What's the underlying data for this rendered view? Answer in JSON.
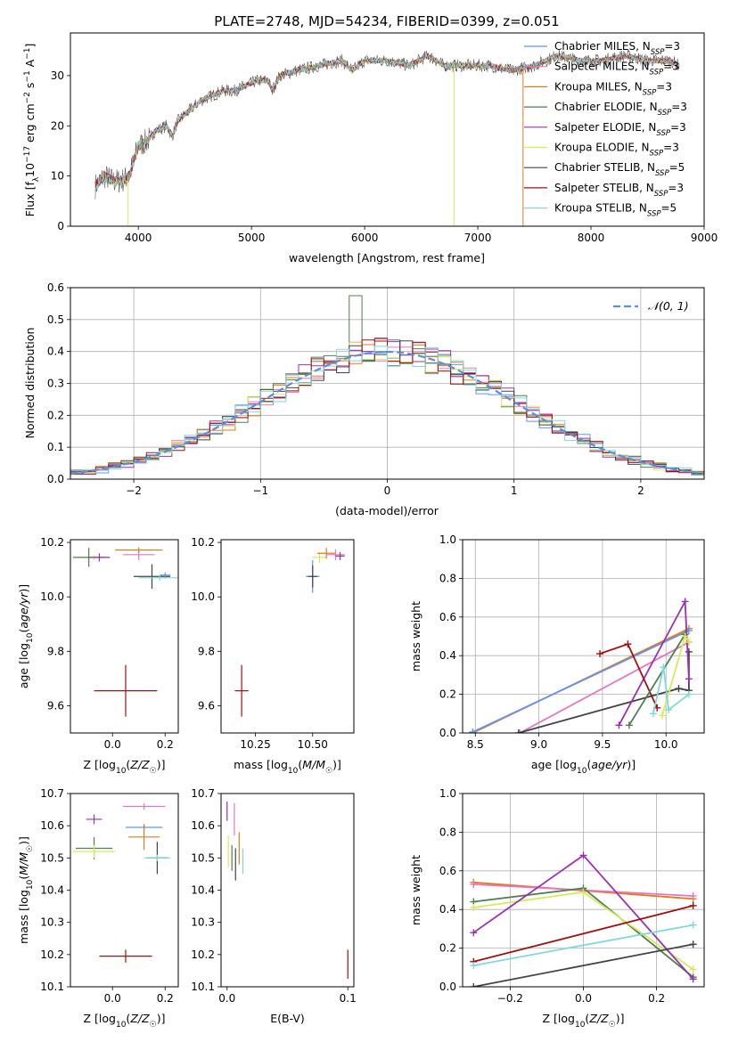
{
  "figure_title": "PLATE=2748, MJD=54234, FIBERID=0399, z=0.051",
  "colors": {
    "chabrier_miles": "#6495ed",
    "salpeter_miles": "#e377c2",
    "kroupa_miles": "#e07b20",
    "chabrier_elodie": "#4f7f4f",
    "salpeter_elodie": "#9b30b0",
    "kroupa_elodie": "#d6ea5a",
    "chabrier_stelib": "#444444",
    "salpeter_stelib": "#a01010",
    "kroupa_stelib": "#80d8dc",
    "normal": "#5b8fd8"
  },
  "chart_data": [
    {
      "type": "line",
      "panel": "spectrum",
      "title": "PLATE=2748, MJD=54234, FIBERID=0399, z=0.051",
      "xlabel": "wavelength [Angstrom, rest frame]",
      "ylabel": "Flux [f_λ10^-17 erg cm^-2 s^-1 A^-1]",
      "xlim": [
        3400,
        9000
      ],
      "ylim": [
        0,
        38.5
      ],
      "xticks": [
        4000,
        5000,
        6000,
        7000,
        8000,
        9000
      ],
      "yticks": [
        0,
        10,
        20,
        30
      ],
      "legend_position": "right",
      "legend": [
        {
          "label": "Chabrier MILES, N",
          "sub": "SSP",
          "suffix": "=3",
          "color_key": "chabrier_miles"
        },
        {
          "label": "Salpeter MILES, N",
          "sub": "SSP",
          "suffix": "=3",
          "color_key": "salpeter_miles"
        },
        {
          "label": "Kroupa MILES, N",
          "sub": "SSP",
          "suffix": "=3",
          "color_key": "kroupa_miles"
        },
        {
          "label": "Chabrier ELODIE, N",
          "sub": "SSP",
          "suffix": "=3",
          "color_key": "chabrier_elodie"
        },
        {
          "label": "Salpeter ELODIE, N",
          "sub": "SSP",
          "suffix": "=3",
          "color_key": "salpeter_elodie"
        },
        {
          "label": "Kroupa ELODIE, N",
          "sub": "SSP",
          "suffix": "=3",
          "color_key": "kroupa_elodie"
        },
        {
          "label": "Chabrier STELIB, N",
          "sub": "SSP",
          "suffix": "=5",
          "color_key": "chabrier_stelib"
        },
        {
          "label": "Salpeter STELIB, N",
          "sub": "SSP",
          "suffix": "=3",
          "color_key": "salpeter_stelib"
        },
        {
          "label": "Kroupa STELIB, N",
          "sub": "SSP",
          "suffix": "=5",
          "color_key": "kroupa_stelib"
        }
      ],
      "continuum": [
        [
          3620,
          8
        ],
        [
          3700,
          10
        ],
        [
          3780,
          9
        ],
        [
          3850,
          9
        ],
        [
          3920,
          10
        ],
        [
          3960,
          13
        ],
        [
          4000,
          16
        ],
        [
          4080,
          17
        ],
        [
          4150,
          19
        ],
        [
          4250,
          20
        ],
        [
          4300,
          18
        ],
        [
          4350,
          21
        ],
        [
          4450,
          23
        ],
        [
          4550,
          25
        ],
        [
          4650,
          26
        ],
        [
          4750,
          27
        ],
        [
          4850,
          27
        ],
        [
          4950,
          28
        ],
        [
          5050,
          29
        ],
        [
          5150,
          29
        ],
        [
          5180,
          27
        ],
        [
          5250,
          30
        ],
        [
          5400,
          31
        ],
        [
          5600,
          32
        ],
        [
          5800,
          33
        ],
        [
          5890,
          31
        ],
        [
          6000,
          33
        ],
        [
          6200,
          33
        ],
        [
          6400,
          32
        ],
        [
          6560,
          34
        ],
        [
          6700,
          32
        ],
        [
          6900,
          32
        ],
        [
          7100,
          32
        ],
        [
          7300,
          31
        ],
        [
          7500,
          32
        ],
        [
          7700,
          34
        ],
        [
          7900,
          33
        ],
        [
          8100,
          33
        ],
        [
          8300,
          34
        ],
        [
          8500,
          33
        ],
        [
          8700,
          33
        ],
        [
          8780,
          32
        ]
      ],
      "deep_lines": [
        {
          "x": 3910,
          "ymin": 0,
          "color_key": "kroupa_elodie"
        },
        {
          "x": 6790,
          "ymin": 0,
          "color_key": "kroupa_elodie"
        },
        {
          "x": 7400,
          "ymin": 0,
          "color_key": "kroupa_miles"
        }
      ]
    },
    {
      "type": "histogram",
      "panel": "residuals",
      "xlabel": "(data-model)/error",
      "ylabel": "Normed distribution",
      "xlim": [
        -2.5,
        2.5
      ],
      "ylim": [
        0,
        0.6
      ],
      "xticks": [
        -2,
        -1,
        0,
        1,
        2
      ],
      "yticks": [
        0,
        0.1,
        0.2,
        0.3,
        0.4,
        0.5,
        0.6
      ],
      "grid": true,
      "bin_width": 0.1,
      "legend": [
        {
          "label": "𝒩(0, 1)",
          "style": "dashed",
          "color_key": "normal"
        }
      ],
      "spike": {
        "x": -0.25,
        "value": 0.575,
        "color_key": "chabrier_elodie"
      },
      "series_keys": [
        "chabrier_miles",
        "salpeter_miles",
        "kroupa_miles",
        "chabrier_elodie",
        "salpeter_elodie",
        "kroupa_elodie",
        "chabrier_stelib",
        "salpeter_stelib",
        "kroupa_stelib"
      ]
    },
    {
      "type": "scatter",
      "panel": "age_vs_Z",
      "xlabel": "Z [log10(Z/Z☉)]",
      "ylabel": "age  [log10(age/yr)]",
      "xlim": [
        -0.16,
        0.25
      ],
      "ylim": [
        9.5,
        10.21
      ],
      "xticks": [
        0.0,
        0.2
      ],
      "yticks": [
        9.6,
        9.8,
        10.0,
        10.2
      ],
      "points": [
        {
          "x": -0.07,
          "y": 10.145,
          "xerr": 0.06,
          "yerr": 0.01,
          "color_key": "kroupa_elodie"
        },
        {
          "x": -0.09,
          "y": 10.145,
          "xerr": 0.06,
          "yerr": 0.035,
          "color_key": "chabrier_elodie"
        },
        {
          "x": -0.05,
          "y": 10.145,
          "xerr": 0.04,
          "yerr": 0.015,
          "color_key": "salpeter_elodie"
        },
        {
          "x": 0.1,
          "y": 10.155,
          "xerr": 0.06,
          "yerr": 0.02,
          "color_key": "salpeter_miles"
        },
        {
          "x": 0.1,
          "y": 10.172,
          "xerr": 0.09,
          "yerr": 0.01,
          "color_key": "kroupa_miles"
        },
        {
          "x": 0.15,
          "y": 10.075,
          "xerr": 0.07,
          "yerr": 0.045,
          "color_key": "chabrier_stelib"
        },
        {
          "x": 0.18,
          "y": 10.07,
          "xerr": 0.08,
          "yerr": 0.01,
          "color_key": "kroupa_stelib"
        },
        {
          "x": 0.2,
          "y": 10.08,
          "xerr": 0.02,
          "yerr": 0.01,
          "color_key": "chabrier_miles"
        },
        {
          "x": 0.05,
          "y": 9.655,
          "xerr": 0.12,
          "yerr": 0.095,
          "color_key": "salpeter_stelib"
        }
      ]
    },
    {
      "type": "scatter",
      "panel": "age_vs_mass",
      "xlabel": "mass [log10(M/M☉)]",
      "ylabel": "",
      "xlim": [
        10.1,
        10.68
      ],
      "ylim": [
        9.5,
        10.21
      ],
      "xticks": [
        10.25,
        10.5
      ],
      "yticks": [
        9.6,
        9.8,
        10.0,
        10.2
      ],
      "points": [
        {
          "x": 10.53,
          "y": 10.145,
          "xerr": 0.03,
          "yerr": 0.02,
          "color_key": "kroupa_elodie"
        },
        {
          "x": 10.56,
          "y": 10.16,
          "xerr": 0.04,
          "yerr": 0.02,
          "color_key": "kroupa_miles"
        },
        {
          "x": 10.6,
          "y": 10.155,
          "xerr": 0.04,
          "yerr": 0.02,
          "color_key": "salpeter_miles"
        },
        {
          "x": 10.62,
          "y": 10.15,
          "xerr": 0.02,
          "yerr": 0.015,
          "color_key": "salpeter_elodie"
        },
        {
          "x": 10.5,
          "y": 10.075,
          "xerr": 0.03,
          "yerr": 0.06,
          "color_key": "chabrier_miles"
        },
        {
          "x": 10.5,
          "y": 10.075,
          "xerr": 0.02,
          "yerr": 0.04,
          "color_key": "chabrier_stelib"
        },
        {
          "x": 10.19,
          "y": 9.655,
          "xerr": 0.03,
          "yerr": 0.095,
          "color_key": "salpeter_stelib"
        }
      ]
    },
    {
      "type": "line",
      "panel": "mass_weight_vs_age",
      "xlabel": "age  [log10(age/yr)]",
      "ylabel": "mass weight",
      "xlim": [
        8.4,
        10.3
      ],
      "ylim": [
        0,
        1
      ],
      "xticks": [
        8.5,
        9.0,
        9.5,
        10.0
      ],
      "yticks": [
        0.0,
        0.2,
        0.4,
        0.6,
        0.8,
        1.0
      ],
      "grid": true,
      "series": [
        {
          "color_key": "kroupa_miles",
          "x": [
            8.48,
            10.18
          ],
          "y": [
            0.0,
            0.54
          ]
        },
        {
          "color_key": "chabrier_miles",
          "x": [
            8.48,
            10.18
          ],
          "y": [
            0.005,
            0.53
          ]
        },
        {
          "color_key": "salpeter_miles",
          "x": [
            8.85,
            10.18
          ],
          "y": [
            0.0,
            0.47
          ]
        },
        {
          "color_key": "chabrier_stelib",
          "x": [
            8.84,
            10.1,
            10.18,
            10.18
          ],
          "y": [
            0.0,
            0.23,
            0.22,
            0.42
          ]
        },
        {
          "color_key": "salpeter_elodie",
          "x": [
            9.63,
            10.15,
            10.18
          ],
          "y": [
            0.04,
            0.68,
            0.28
          ]
        },
        {
          "color_key": "salpeter_stelib",
          "x": [
            9.48,
            9.7,
            9.93
          ],
          "y": [
            0.41,
            0.46,
            0.13
          ]
        },
        {
          "color_key": "chabrier_elodie",
          "x": [
            9.71,
            10.15
          ],
          "y": [
            0.04,
            0.51
          ]
        },
        {
          "color_key": "kroupa_elodie",
          "x": [
            9.97,
            10.15,
            10.18
          ],
          "y": [
            0.09,
            0.5,
            0.47
          ]
        },
        {
          "color_key": "kroupa_stelib",
          "x": [
            9.9,
            9.98,
            10.02,
            10.18
          ],
          "y": [
            0.1,
            0.34,
            0.12,
            0.2
          ]
        }
      ]
    },
    {
      "type": "scatter",
      "panel": "mass_vs_Z",
      "xlabel": "Z [log10(Z/Z☉)]",
      "ylabel": "mass [log10(M/M☉)]",
      "xlim": [
        -0.16,
        0.25
      ],
      "ylim": [
        10.1,
        10.7
      ],
      "xticks": [
        0.0,
        0.2
      ],
      "yticks": [
        10.1,
        10.2,
        10.3,
        10.4,
        10.5,
        10.6,
        10.7
      ],
      "points": [
        {
          "x": -0.07,
          "y": 10.62,
          "xerr": 0.03,
          "yerr": 0.015,
          "color_key": "salpeter_elodie"
        },
        {
          "x": -0.07,
          "y": 10.53,
          "xerr": 0.07,
          "yerr": 0.035,
          "color_key": "chabrier_elodie"
        },
        {
          "x": -0.07,
          "y": 10.52,
          "xerr": 0.08,
          "yerr": 0.02,
          "color_key": "kroupa_elodie"
        },
        {
          "x": 0.12,
          "y": 10.66,
          "xerr": 0.08,
          "yerr": 0.01,
          "color_key": "salpeter_miles"
        },
        {
          "x": 0.12,
          "y": 10.595,
          "xerr": 0.07,
          "yerr": 0.01,
          "color_key": "chabrier_miles"
        },
        {
          "x": 0.12,
          "y": 10.565,
          "xerr": 0.06,
          "yerr": 0.04,
          "color_key": "kroupa_miles"
        },
        {
          "x": 0.17,
          "y": 10.5,
          "xerr": 0.04,
          "yerr": 0.05,
          "color_key": "chabrier_stelib"
        },
        {
          "x": 0.17,
          "y": 10.5,
          "xerr": 0.05,
          "yerr": 0.01,
          "color_key": "kroupa_stelib"
        },
        {
          "x": 0.05,
          "y": 10.195,
          "xerr": 0.1,
          "yerr": 0.02,
          "color_key": "salpeter_stelib"
        }
      ]
    },
    {
      "type": "scatter",
      "panel": "mass_vs_ebv",
      "xlabel": "E(B-V)",
      "ylabel": "",
      "xlim": [
        -0.005,
        0.105
      ],
      "ylim": [
        10.1,
        10.7
      ],
      "xticks": [
        0.0,
        0.1
      ],
      "yticks": [
        10.1,
        10.2,
        10.3,
        10.4,
        10.5,
        10.6,
        10.7
      ],
      "points": [
        {
          "x": 0.0,
          "y": 10.645,
          "xerr": 0,
          "yerr": 0.03,
          "color_key": "salpeter_elodie"
        },
        {
          "x": 0.006,
          "y": 10.62,
          "xerr": 0,
          "yerr": 0.05,
          "color_key": "salpeter_miles"
        },
        {
          "x": 0.001,
          "y": 10.52,
          "xerr": 0,
          "yerr": 0.05,
          "color_key": "kroupa_elodie"
        },
        {
          "x": 0.004,
          "y": 10.5,
          "xerr": 0,
          "yerr": 0.04,
          "color_key": "chabrier_elodie"
        },
        {
          "x": 0.007,
          "y": 10.48,
          "xerr": 0,
          "yerr": 0.05,
          "color_key": "chabrier_stelib"
        },
        {
          "x": 0.01,
          "y": 10.53,
          "xerr": 0,
          "yerr": 0.05,
          "color_key": "kroupa_miles"
        },
        {
          "x": 0.013,
          "y": 10.49,
          "xerr": 0,
          "yerr": 0.04,
          "color_key": "kroupa_stelib"
        },
        {
          "x": 0.1,
          "y": 10.17,
          "xerr": 0,
          "yerr": 0.045,
          "color_key": "salpeter_stelib"
        }
      ]
    },
    {
      "type": "line",
      "panel": "mass_weight_vs_Z",
      "xlabel": "Z [log10(Z/Z☉)]",
      "ylabel": "mass weight",
      "xlim": [
        -0.33,
        0.33
      ],
      "ylim": [
        0,
        1
      ],
      "xticks": [
        -0.2,
        0.0,
        0.2
      ],
      "yticks": [
        0.0,
        0.2,
        0.4,
        0.6,
        0.8,
        1.0
      ],
      "grid": true,
      "series": [
        {
          "color_key": "kroupa_miles",
          "x": [
            -0.3,
            0.3
          ],
          "y": [
            0.54,
            0.455
          ]
        },
        {
          "color_key": "salpeter_miles",
          "x": [
            -0.3,
            0.3
          ],
          "y": [
            0.53,
            0.47
          ]
        },
        {
          "color_key": "chabrier_elodie",
          "x": [
            -0.3,
            0.0,
            0.3
          ],
          "y": [
            0.44,
            0.51,
            0.05
          ]
        },
        {
          "color_key": "kroupa_elodie",
          "x": [
            -0.3,
            0.0,
            0.3
          ],
          "y": [
            0.41,
            0.49,
            0.09
          ]
        },
        {
          "color_key": "salpeter_elodie",
          "x": [
            -0.3,
            0.0,
            0.3
          ],
          "y": [
            0.28,
            0.68,
            0.04
          ]
        },
        {
          "color_key": "salpeter_stelib",
          "x": [
            -0.3,
            0.3
          ],
          "y": [
            0.13,
            0.42
          ]
        },
        {
          "color_key": "kroupa_stelib",
          "x": [
            -0.3,
            0.3
          ],
          "y": [
            0.11,
            0.32
          ]
        },
        {
          "color_key": "chabrier_stelib",
          "x": [
            -0.3,
            0.3
          ],
          "y": [
            0.0,
            0.22
          ]
        }
      ]
    }
  ]
}
